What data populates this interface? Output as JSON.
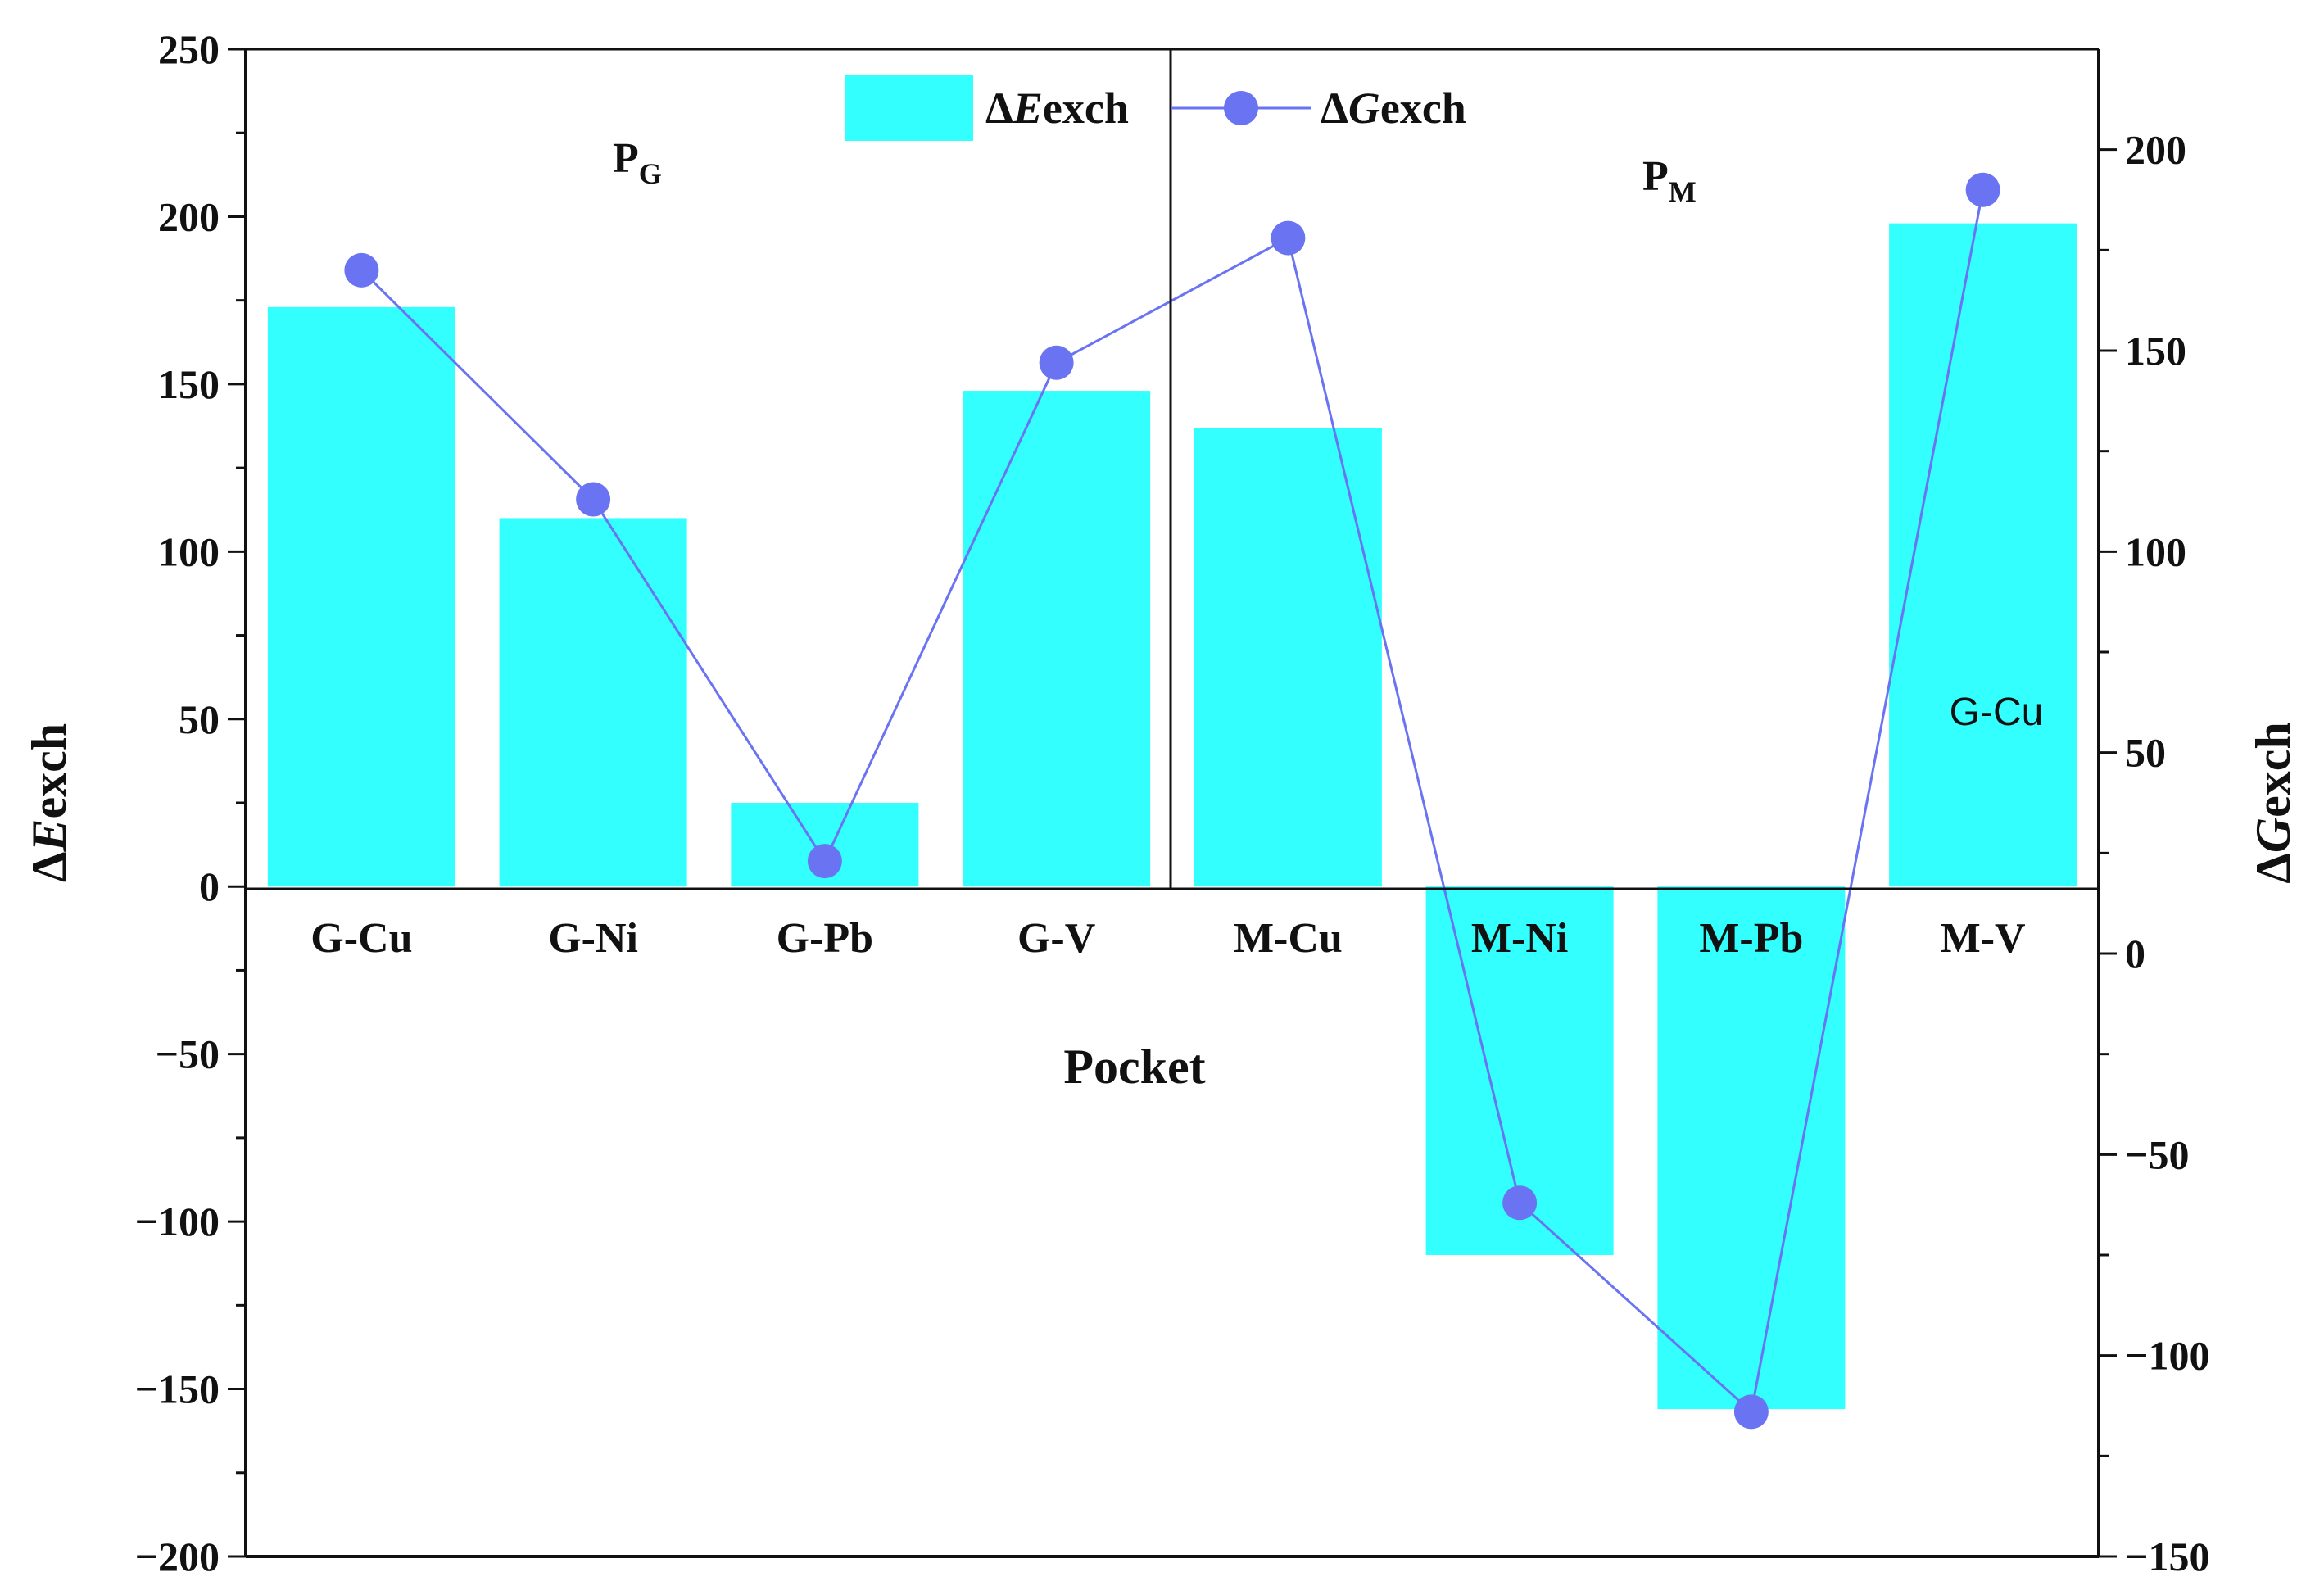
{
  "chart_data": {
    "type": "bar",
    "categories": [
      "G-Cu",
      "G-Ni",
      "G-Pb",
      "G-V",
      "M-Cu",
      "M-Ni",
      "M-Pb",
      "M-V"
    ],
    "series": [
      {
        "name": "exch",
        "name_prefix": "Δ",
        "name_var": "E",
        "axis": "left",
        "kind": "bar",
        "color": "#33ffff",
        "values": [
          173,
          110,
          25,
          148,
          137,
          -110,
          -156,
          198
        ]
      },
      {
        "name": "exch",
        "name_prefix": "Δ",
        "name_var": "G",
        "axis": "right",
        "kind": "line",
        "color": "#6a73f2",
        "values": [
          170,
          113,
          23,
          147,
          178,
          -62,
          -114,
          190
        ]
      }
    ],
    "xlabel": "Pocket",
    "ylabel": {
      "prefix": "Δ",
      "var": "E",
      "rest": "exch"
    },
    "y2label": {
      "prefix": "Δ",
      "var": "G",
      "rest": "exch"
    },
    "ylim": [
      -200,
      250
    ],
    "y2lim": [
      -150,
      225
    ],
    "yticks": [
      "250",
      "200",
      "150",
      "100",
      "50",
      "0",
      "−50",
      "−100",
      "−150",
      "−200"
    ],
    "y2ticks": [
      "200",
      "150",
      "100",
      "50",
      "0",
      "−50",
      "−100",
      "−150"
    ],
    "annotations": {
      "pg": {
        "main": "P",
        "sub": "G"
      },
      "pm": {
        "main": "P",
        "sub": "M"
      },
      "inbar": "G-Cu"
    },
    "legend": "top-center",
    "grid": false
  }
}
